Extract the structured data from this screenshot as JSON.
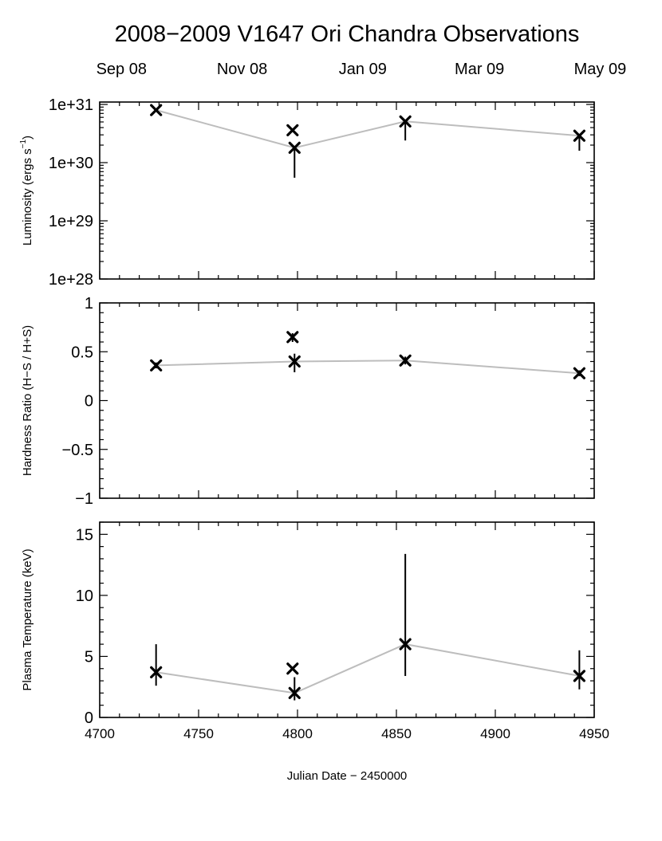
{
  "chart_data": {
    "title": "2008−2009 V1647 Ori Chandra Observations",
    "top_axis_labels": [
      "Sep 08",
      "Nov 08",
      "Jan 09",
      "Mar 09",
      "May 09"
    ],
    "top_axis_positions": [
      4711,
      4772,
      4833,
      4892,
      4953
    ],
    "x": {
      "label": "Julian Date − 2450000",
      "lim": [
        4700,
        4950
      ],
      "ticks": [
        4700,
        4750,
        4800,
        4850,
        4900,
        4950
      ],
      "tick_labels": [
        "4700",
        "4750",
        "4800",
        "4850",
        "4900",
        "4950"
      ]
    },
    "connect_order": [
      0,
      2,
      3,
      4
    ],
    "panels": [
      {
        "type": "scatter",
        "scale": "log",
        "ylabel": "Luminosity (ergs s",
        "ylabel_sup": "−1",
        "ylabel_close": ")",
        "ylim": [
          1e+28,
          1e+31
        ],
        "yticks": [
          1e+28,
          1e+29,
          1e+30,
          1e+31
        ],
        "ytick_labels": [
          "1e+28",
          "1e+29",
          "1e+30",
          "1e+31"
        ],
        "points": [
          {
            "x": 4728.5,
            "y": 8e+30,
            "ylo": 8e+30,
            "yhi": 8e+30
          },
          {
            "x": 4797.5,
            "y": 3.6e+30,
            "ylo": 3.6e+30,
            "yhi": 3.6e+30
          },
          {
            "x": 4798.5,
            "y": 1.8e+30,
            "ylo": 5.5e+29,
            "yhi": 1.8e+30
          },
          {
            "x": 4854.5,
            "y": 5.1e+30,
            "ylo": 2.4e+30,
            "yhi": 5.1e+30
          },
          {
            "x": 4942.5,
            "y": 2.9e+30,
            "ylo": 1.6e+30,
            "yhi": 2.9e+30
          }
        ]
      },
      {
        "type": "scatter",
        "scale": "linear",
        "ylabel": "Hardness Ratio (H−S / H+S)",
        "ylim": [
          -1,
          1
        ],
        "yticks": [
          -1,
          -0.5,
          0,
          0.5,
          1
        ],
        "ytick_labels": [
          "−1",
          "−0.5",
          "0",
          "0.5",
          "1"
        ],
        "points": [
          {
            "x": 4728.5,
            "y": 0.36,
            "ylo": 0.33,
            "yhi": 0.39
          },
          {
            "x": 4797.5,
            "y": 0.65,
            "ylo": 0.6,
            "yhi": 0.69
          },
          {
            "x": 4798.5,
            "y": 0.4,
            "ylo": 0.29,
            "yhi": 0.48
          },
          {
            "x": 4854.5,
            "y": 0.41,
            "ylo": 0.37,
            "yhi": 0.45
          },
          {
            "x": 4942.5,
            "y": 0.28,
            "ylo": 0.25,
            "yhi": 0.31
          }
        ]
      },
      {
        "type": "scatter",
        "scale": "linear",
        "ylabel": "Plasma Temperature (keV)",
        "ylim": [
          0,
          16
        ],
        "yticks": [
          0,
          5,
          10,
          15
        ],
        "ytick_labels": [
          "0",
          "5",
          "10",
          "15"
        ],
        "points": [
          {
            "x": 4728.5,
            "y": 3.7,
            "ylo": 2.6,
            "yhi": 6.0
          },
          {
            "x": 4797.5,
            "y": 4.0,
            "ylo": 4.0,
            "yhi": 4.0
          },
          {
            "x": 4798.5,
            "y": 2.0,
            "ylo": 1.4,
            "yhi": 3.3
          },
          {
            "x": 4854.5,
            "y": 6.0,
            "ylo": 3.4,
            "yhi": 13.4
          },
          {
            "x": 4942.5,
            "y": 3.4,
            "ylo": 2.3,
            "yhi": 5.5
          }
        ]
      }
    ]
  }
}
